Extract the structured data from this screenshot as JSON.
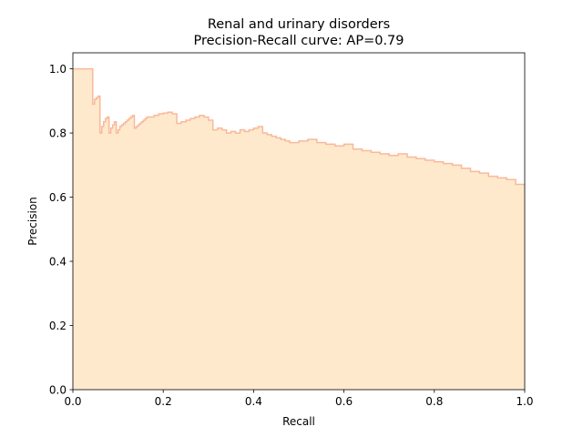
{
  "chart_data": {
    "type": "area",
    "title": "Renal and urinary disorders",
    "subtitle": "Precision-Recall curve: AP=0.79",
    "xlabel": "Recall",
    "ylabel": "Precision",
    "xlim": [
      0.0,
      1.0
    ],
    "ylim": [
      0.0,
      1.05
    ],
    "xticks": [
      "0.0",
      "0.2",
      "0.4",
      "0.6",
      "0.8",
      "1.0"
    ],
    "yticks": [
      "0.0",
      "0.2",
      "0.4",
      "0.6",
      "0.8",
      "1.0"
    ],
    "grid": false,
    "legend": "none",
    "series": [
      {
        "step": "post",
        "fill_color": "#ffe9cc",
        "line_color": "#f8b99a",
        "x": [
          0.0,
          0.044,
          0.048,
          0.052,
          0.056,
          0.06,
          0.064,
          0.068,
          0.072,
          0.076,
          0.08,
          0.084,
          0.088,
          0.092,
          0.096,
          0.1,
          0.104,
          0.108,
          0.112,
          0.116,
          0.12,
          0.124,
          0.128,
          0.132,
          0.136,
          0.14,
          0.144,
          0.148,
          0.152,
          0.156,
          0.16,
          0.164,
          0.17,
          0.18,
          0.19,
          0.2,
          0.21,
          0.22,
          0.23,
          0.24,
          0.25,
          0.26,
          0.27,
          0.28,
          0.29,
          0.3,
          0.31,
          0.32,
          0.33,
          0.34,
          0.35,
          0.36,
          0.37,
          0.38,
          0.39,
          0.4,
          0.41,
          0.42,
          0.43,
          0.44,
          0.45,
          0.46,
          0.47,
          0.48,
          0.5,
          0.52,
          0.54,
          0.56,
          0.58,
          0.6,
          0.62,
          0.64,
          0.66,
          0.68,
          0.7,
          0.72,
          0.74,
          0.76,
          0.78,
          0.8,
          0.82,
          0.84,
          0.86,
          0.88,
          0.9,
          0.92,
          0.94,
          0.96,
          0.98,
          1.0
        ],
        "y": [
          1.0,
          0.89,
          0.905,
          0.91,
          0.915,
          0.8,
          0.82,
          0.835,
          0.845,
          0.85,
          0.8,
          0.815,
          0.825,
          0.835,
          0.8,
          0.81,
          0.82,
          0.825,
          0.83,
          0.835,
          0.84,
          0.845,
          0.85,
          0.855,
          0.815,
          0.82,
          0.825,
          0.83,
          0.835,
          0.84,
          0.845,
          0.85,
          0.85,
          0.855,
          0.86,
          0.862,
          0.865,
          0.86,
          0.83,
          0.835,
          0.84,
          0.845,
          0.85,
          0.855,
          0.85,
          0.84,
          0.81,
          0.815,
          0.81,
          0.8,
          0.805,
          0.8,
          0.81,
          0.805,
          0.81,
          0.815,
          0.82,
          0.8,
          0.795,
          0.79,
          0.785,
          0.78,
          0.775,
          0.77,
          0.775,
          0.78,
          0.77,
          0.765,
          0.76,
          0.765,
          0.75,
          0.745,
          0.74,
          0.735,
          0.73,
          0.735,
          0.725,
          0.72,
          0.715,
          0.71,
          0.705,
          0.7,
          0.69,
          0.68,
          0.675,
          0.665,
          0.66,
          0.655,
          0.64,
          0.64
        ]
      }
    ]
  }
}
